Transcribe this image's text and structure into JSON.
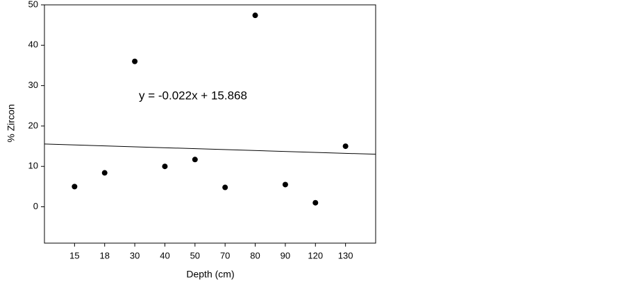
{
  "chart_data": {
    "type": "scatter",
    "x_label": "Depth (cm)",
    "y_label": "% Zircon",
    "categories": [
      "15",
      "18",
      "30",
      "40",
      "50",
      "70",
      "80",
      "90",
      "120",
      "130"
    ],
    "values": [
      5.0,
      8.4,
      36.0,
      10.0,
      11.7,
      4.8,
      47.4,
      5.5,
      1.0,
      15.0
    ],
    "color": "#000000",
    "ylim": [
      -9,
      50
    ],
    "yticks": [
      0,
      10,
      20,
      30,
      40,
      50
    ],
    "trendline": {
      "slope": -0.022,
      "intercept": 15.868
    },
    "annotation": "y = -0.022x + 15.868",
    "grid": false
  }
}
